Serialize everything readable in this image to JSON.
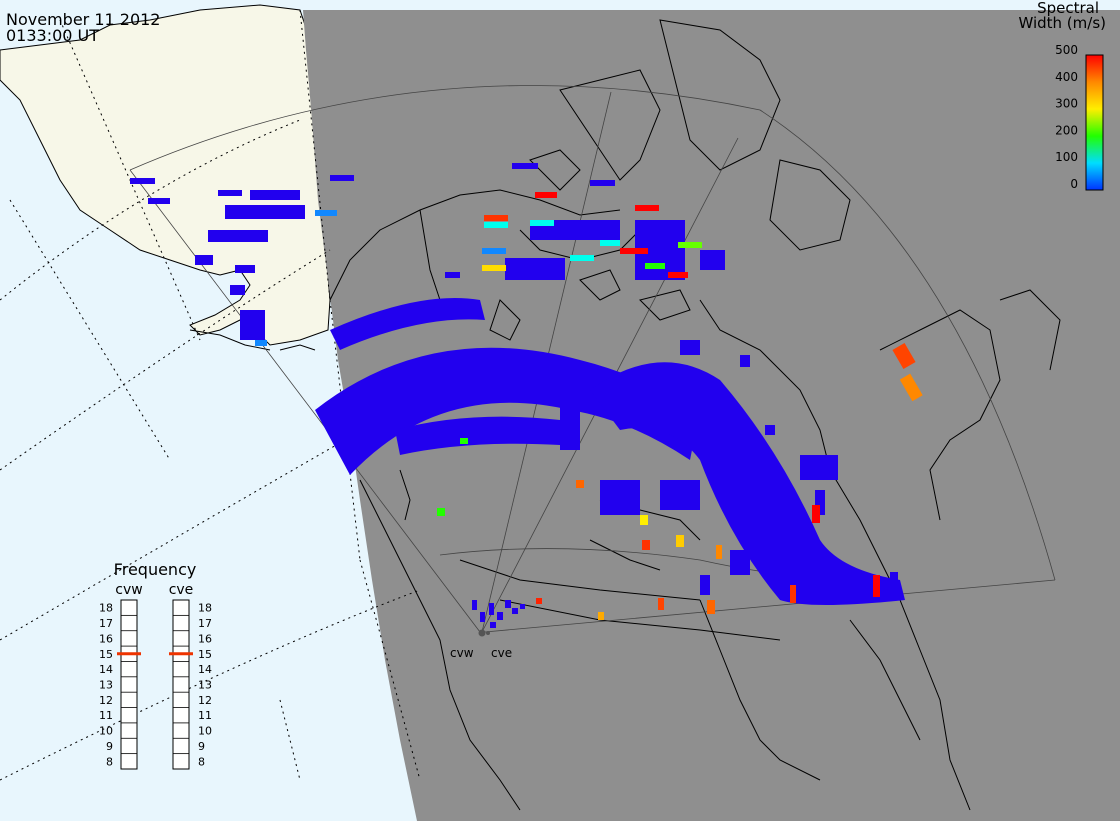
{
  "header": {
    "date": "November 11 2012",
    "time": "0133:00 UT"
  },
  "colorbar": {
    "title_line1": "Spectral",
    "title_line2": "Width (m/s)",
    "ticks": [
      "500",
      "400",
      "300",
      "200",
      "100",
      "0"
    ],
    "colors": [
      "#ff0000",
      "#ff8800",
      "#ffee00",
      "#22ff00",
      "#00ffee",
      "#0033ff"
    ]
  },
  "frequency_panel": {
    "title": "Frequency",
    "radars": [
      {
        "name": "cvw",
        "value_mhz": 15
      },
      {
        "name": "cve",
        "value_mhz": 15
      }
    ],
    "ticks": [
      "18",
      "17",
      "16",
      "15",
      "14",
      "13",
      "12",
      "11",
      "10",
      "9",
      "8"
    ]
  },
  "sites": [
    {
      "label": "cvw"
    },
    {
      "label": "cve"
    }
  ],
  "colors": {
    "ocean": "#e8f6fd",
    "land_day": "#f7f7e8",
    "night": "#8f8f8f",
    "echo_low_width": "#2200ee",
    "coast": "#000000",
    "fov_line": "#444444"
  }
}
